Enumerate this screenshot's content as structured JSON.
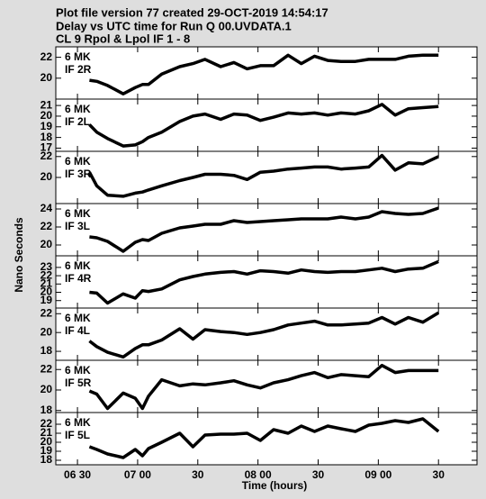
{
  "title_lines": [
    "Plot file version 77  created 29-OCT-2019 14:54:17",
    "Delay vs UTC time for Run Q 00.UVDATA.1",
    "CL 9  Rpol & Lpol  IF 1 - 8"
  ],
  "ylabel": "Nano Seconds",
  "xlabel": "Time (hours)",
  "xlim": [
    6.32,
    9.82
  ],
  "xticks": [
    {
      "value": 6.5,
      "label": "06 30"
    },
    {
      "value": 7.0,
      "label": "07 00"
    },
    {
      "value": 7.5,
      "label": "30"
    },
    {
      "value": 8.0,
      "label": "08 00"
    },
    {
      "value": 8.5,
      "label": "30"
    },
    {
      "value": 9.0,
      "label": "09 00"
    },
    {
      "value": 9.5,
      "label": "30"
    }
  ],
  "x": [
    6.6,
    6.66,
    6.75,
    6.88,
    6.98,
    7.04,
    7.09,
    7.2,
    7.35,
    7.46,
    7.56,
    7.69,
    7.8,
    7.91,
    8.02,
    8.13,
    8.25,
    8.36,
    8.47,
    8.58,
    8.69,
    8.81,
    8.92,
    9.03,
    9.14,
    9.25,
    9.37,
    9.5
  ],
  "chart_data": [
    {
      "type": "line",
      "label_lines": [
        "6 MK",
        "IF 2R"
      ],
      "color": "#000000",
      "ylim": [
        18,
        23
      ],
      "yticks": [
        20,
        22
      ],
      "values": [
        19.8,
        19.7,
        19.3,
        18.5,
        19.1,
        19.4,
        19.4,
        20.4,
        21.1,
        21.4,
        21.8,
        21.1,
        21.5,
        20.9,
        21.2,
        21.2,
        22.2,
        21.4,
        22.1,
        21.7,
        21.6,
        21.6,
        21.8,
        21.8,
        21.8,
        22.1,
        22.2,
        22.2
      ]
    },
    {
      "type": "line",
      "label_lines": [
        "6 MK",
        "IF 2L"
      ],
      "color": "#000000",
      "ylim": [
        16.7,
        21.6
      ],
      "yticks": [
        17,
        18,
        19,
        20,
        21
      ],
      "values": [
        19.2,
        18.5,
        17.9,
        17.2,
        17.3,
        17.6,
        18.0,
        18.5,
        19.5,
        20.0,
        20.2,
        19.7,
        20.2,
        20.1,
        19.6,
        19.9,
        20.3,
        20.2,
        20.3,
        20.1,
        20.3,
        20.2,
        20.5,
        21.1,
        20.1,
        20.7,
        20.8,
        20.9
      ]
    },
    {
      "type": "line",
      "label_lines": [
        "6 MK",
        "IF 3R"
      ],
      "color": "#000000",
      "ylim": [
        17.5,
        22.5
      ],
      "yticks": [
        20,
        22
      ],
      "values": [
        20.5,
        19.2,
        18.3,
        18.2,
        18.5,
        18.6,
        18.8,
        19.2,
        19.7,
        20.0,
        20.3,
        20.3,
        20.2,
        19.8,
        20.5,
        20.6,
        20.8,
        20.9,
        21.0,
        21.0,
        20.8,
        20.9,
        21.0,
        22.1,
        20.7,
        21.4,
        21.3,
        22.0
      ]
    },
    {
      "type": "line",
      "label_lines": [
        "6 MK",
        "IF 3L"
      ],
      "color": "#000000",
      "ylim": [
        18.8,
        24.6
      ],
      "yticks": [
        20,
        22,
        24
      ],
      "values": [
        20.9,
        20.8,
        20.4,
        19.3,
        20.3,
        20.6,
        20.5,
        21.3,
        21.9,
        22.1,
        22.3,
        22.3,
        22.7,
        22.5,
        22.6,
        22.7,
        22.8,
        22.9,
        22.9,
        22.9,
        23.1,
        22.9,
        23.1,
        23.7,
        23.5,
        23.4,
        23.5,
        24.1
      ]
    },
    {
      "type": "line",
      "label_lines": [
        "6 MK",
        "IF 4R"
      ],
      "color": "#000000",
      "ylim": [
        18.1,
        24.4
      ],
      "yticks": [
        19,
        20,
        21,
        22,
        23
      ],
      "values": [
        20.0,
        19.9,
        18.7,
        19.8,
        19.3,
        20.2,
        20.1,
        20.4,
        21.5,
        21.9,
        22.2,
        22.4,
        22.5,
        22.2,
        22.6,
        22.5,
        22.3,
        22.7,
        22.5,
        22.4,
        22.5,
        22.5,
        22.7,
        22.9,
        22.5,
        22.8,
        22.9,
        23.7
      ]
    },
    {
      "type": "line",
      "label_lines": [
        "6 MK",
        "IF 4L"
      ],
      "color": "#000000",
      "ylim": [
        17.05,
        22.6
      ],
      "yticks": [
        18,
        20,
        22
      ],
      "values": [
        19.1,
        18.5,
        17.9,
        17.4,
        18.3,
        18.7,
        18.7,
        19.2,
        20.4,
        19.3,
        20.3,
        20.1,
        20.0,
        19.8,
        20.0,
        20.3,
        20.8,
        21.0,
        21.2,
        20.8,
        20.8,
        20.9,
        21.0,
        21.6,
        20.9,
        21.6,
        21.1,
        22.1
      ]
    },
    {
      "type": "line",
      "label_lines": [
        "6 MK",
        "IF 5R"
      ],
      "color": "#000000",
      "ylim": [
        17.8,
        22.9
      ],
      "yticks": [
        18,
        20,
        22
      ],
      "values": [
        19.9,
        19.6,
        18.2,
        19.7,
        19.2,
        18.2,
        19.4,
        21.0,
        20.4,
        20.6,
        20.5,
        20.7,
        20.9,
        20.5,
        20.2,
        20.7,
        21.0,
        21.4,
        21.7,
        21.2,
        21.5,
        21.4,
        21.3,
        22.4,
        21.7,
        21.9,
        21.9,
        21.9
      ]
    },
    {
      "type": "line",
      "label_lines": [
        "6 MK",
        "IF 5L"
      ],
      "color": "#000000",
      "ylim": [
        17.5,
        23.3
      ],
      "yticks": [
        18,
        19,
        20,
        21,
        22
      ],
      "values": [
        19.5,
        19.2,
        18.7,
        18.3,
        19.2,
        18.5,
        19.3,
        20.0,
        21.0,
        19.5,
        20.8,
        20.9,
        20.9,
        21.0,
        20.2,
        21.4,
        21.0,
        21.8,
        21.2,
        21.8,
        21.5,
        21.2,
        21.9,
        22.1,
        22.4,
        22.2,
        22.6,
        21.2
      ]
    }
  ]
}
